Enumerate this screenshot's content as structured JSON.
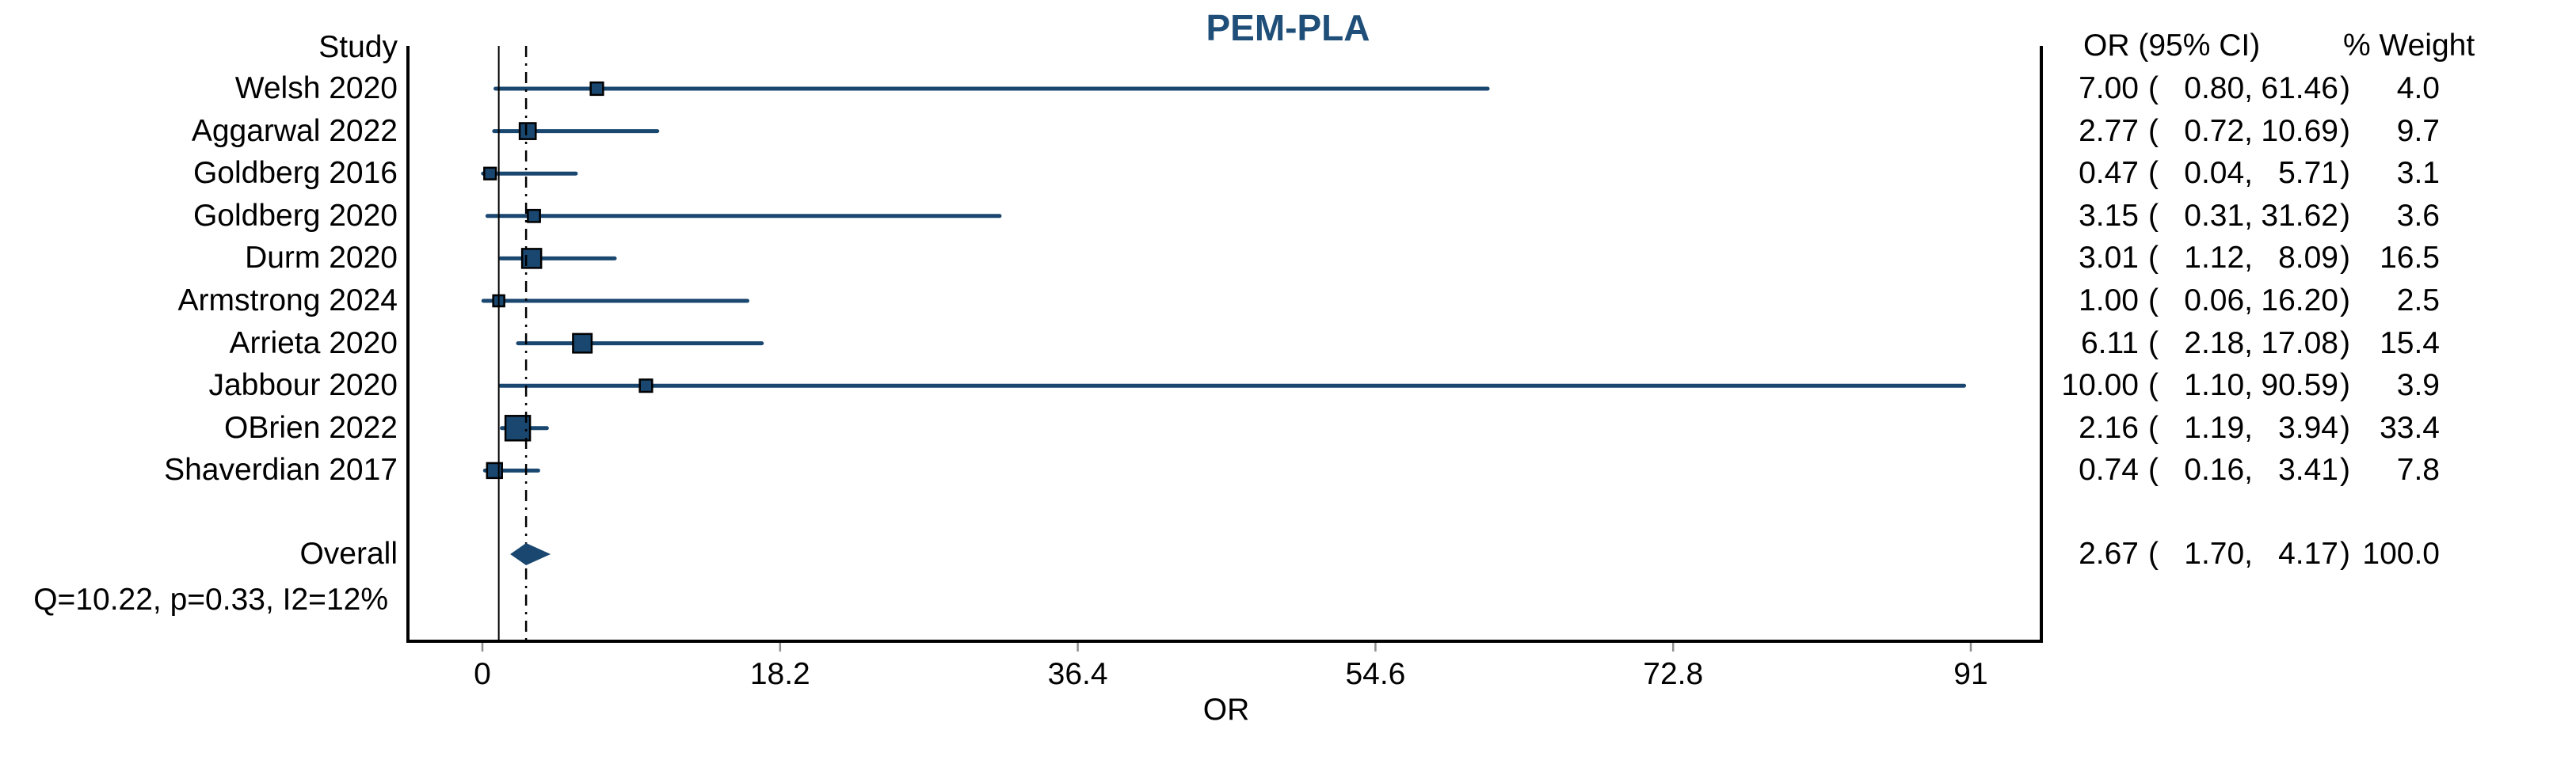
{
  "title": "PEM-PLA",
  "colors": {
    "accent_navy": "#1A476F",
    "title_blue": "#1F4E79",
    "frame_black": "#000000",
    "tick_gray": "#8F8F8F"
  },
  "columns": {
    "study_header": "Study",
    "ci_header": "OR (95% CI)",
    "weight_header": "% Weight"
  },
  "heterogeneity": "Q=10.22, p=0.33, I2=12%",
  "chart_data": {
    "type": "forest",
    "title": "PEM-PLA",
    "xlabel": "OR",
    "xlim": [
      -4.5,
      95.3
    ],
    "x_ticks": [
      {
        "value": 0,
        "label": "0"
      },
      {
        "value": 18.2,
        "label": "18.2"
      },
      {
        "value": 36.4,
        "label": "36.4"
      },
      {
        "value": 54.6,
        "label": "54.6"
      },
      {
        "value": 72.8,
        "label": "72.8"
      },
      {
        "value": 91,
        "label": "91"
      }
    ],
    "null_line_value": 1,
    "pooled_line_value": 2.67,
    "legend_position": "none",
    "grid": false,
    "rows": [
      {
        "study": "Welsh 2020",
        "or": 7.0,
        "lo": 0.8,
        "hi": 61.46,
        "weight": 4.0
      },
      {
        "study": "Aggarwal 2022",
        "or": 2.77,
        "lo": 0.72,
        "hi": 10.69,
        "weight": 9.7
      },
      {
        "study": "Goldberg 2016",
        "or": 0.47,
        "lo": 0.04,
        "hi": 5.71,
        "weight": 3.1
      },
      {
        "study": "Goldberg 2020",
        "or": 3.15,
        "lo": 0.31,
        "hi": 31.62,
        "weight": 3.6
      },
      {
        "study": "Durm 2020",
        "or": 3.01,
        "lo": 1.12,
        "hi": 8.09,
        "weight": 16.5
      },
      {
        "study": "Armstrong 2024",
        "or": 1.0,
        "lo": 0.06,
        "hi": 16.2,
        "weight": 2.5
      },
      {
        "study": "Arrieta 2020",
        "or": 6.11,
        "lo": 2.18,
        "hi": 17.08,
        "weight": 15.4
      },
      {
        "study": "Jabbour 2020",
        "or": 10.0,
        "lo": 1.1,
        "hi": 90.59,
        "weight": 3.9
      },
      {
        "study": "OBrien 2022",
        "or": 2.16,
        "lo": 1.19,
        "hi": 3.94,
        "weight": 33.4
      },
      {
        "study": "Shaverdian 2017",
        "or": 0.74,
        "lo": 0.16,
        "hi": 3.41,
        "weight": 7.8
      }
    ],
    "overall": {
      "label": "Overall",
      "or": 2.67,
      "lo": 1.7,
      "hi": 4.17,
      "weight": 100.0
    }
  }
}
